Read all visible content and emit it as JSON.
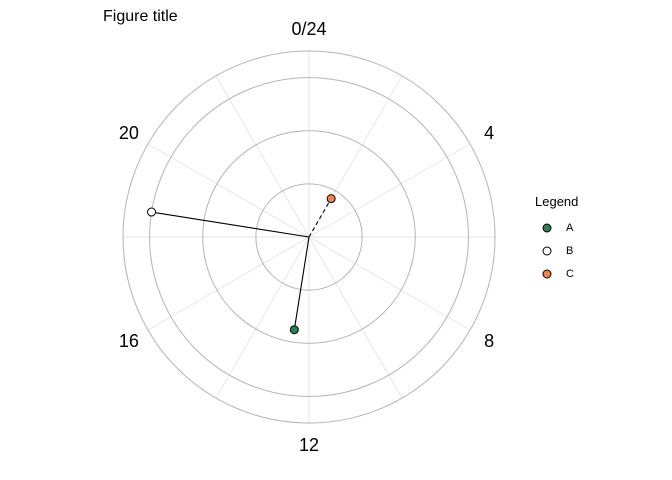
{
  "chart_data": {
    "type": "polar-scatter",
    "title": "Figure title",
    "angular_axis": {
      "unit": "hour",
      "range": [
        0,
        24
      ],
      "major_tick_labels": [
        "0/24",
        "4",
        "8",
        "12",
        "16",
        "20"
      ],
      "major_tick_values": [
        0,
        4,
        8,
        12,
        16,
        20
      ],
      "minor_gridlines_every_hours": 2
    },
    "radial_axis": {
      "range": [
        0,
        1.05
      ],
      "gridlines": [
        0.3,
        0.6,
        0.9,
        1.05
      ],
      "tick_labels_shown": false
    },
    "series": [
      {
        "name": "A",
        "color": "#2e7d57",
        "hour": 12.6,
        "r": 0.53,
        "segment": "solid"
      },
      {
        "name": "B",
        "color": "#ffffff",
        "hour": 18.6,
        "r": 0.9,
        "segment": "solid"
      },
      {
        "name": "C",
        "color": "#f4824c",
        "hour": 2.0,
        "r": 0.25,
        "segment": "dashed"
      }
    ],
    "legend": {
      "title": "Legend",
      "position": "right",
      "entries": [
        "A",
        "B",
        "C"
      ]
    },
    "grid": true
  }
}
